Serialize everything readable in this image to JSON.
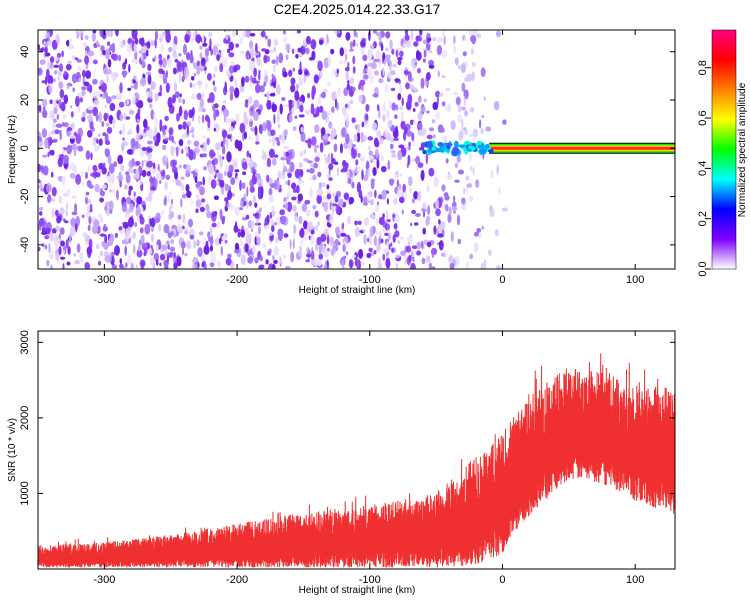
{
  "title": "C2E4.2025.014.22.33.G17",
  "chart_data": [
    {
      "type": "heatmap",
      "xlabel": "Height of straight line (km)",
      "ylabel": "Frequency (Hz)",
      "xlim": [
        -350,
        130
      ],
      "ylim": [
        -50,
        49
      ],
      "xticks": [
        -300,
        -200,
        -100,
        0,
        100
      ],
      "xtick_labels": [
        "-300",
        "-200",
        "-100",
        "0",
        "100"
      ],
      "yticks": [
        -40,
        -20,
        0,
        20,
        40
      ],
      "ytick_labels": [
        "-40",
        "-20",
        "0",
        "20",
        "40"
      ],
      "colorbar": {
        "label": "Normalized spectral amplitude",
        "range": [
          0,
          0.95
        ],
        "ticks": [
          0,
          0.2,
          0.4,
          0.6,
          0.8
        ],
        "tick_labels": [
          "0.0",
          "0.2",
          "0.4",
          "0.6",
          "0.8"
        ],
        "colors": [
          "#ffffff",
          "#7f00ff",
          "#0000ff",
          "#00ffff",
          "#00ff00",
          "#ffff00",
          "#ff8000",
          "#ff0000",
          "#ff0080"
        ]
      },
      "noise_region_x": [
        -350,
        -10
      ],
      "noise_amplitude": 0.05,
      "signal_line": {
        "x": [
          -60,
          130
        ],
        "frequency": 0,
        "amplitude": 0.85
      }
    },
    {
      "type": "line",
      "xlabel": "Height of straight line (km)",
      "ylabel": "SNR (10 * v/v)",
      "xlim": [
        -350,
        130
      ],
      "ylim": [
        0,
        3150
      ],
      "xticks": [
        -300,
        -200,
        -100,
        0,
        100
      ],
      "xtick_labels": [
        "-300",
        "-200",
        "-100",
        "0",
        "100"
      ],
      "yticks": [
        1000,
        2000,
        3000
      ],
      "ytick_labels": [
        "1000",
        "2000",
        "3000"
      ],
      "series_color": "#f03030",
      "envelope": {
        "x": [
          -350,
          -300,
          -250,
          -200,
          -150,
          -100,
          -50,
          -20,
          0,
          20,
          50,
          80,
          100,
          130
        ],
        "upper": [
          320,
          360,
          450,
          600,
          750,
          850,
          1000,
          1500,
          1800,
          2300,
          2700,
          2600,
          2450,
          2400
        ],
        "lower": [
          20,
          20,
          20,
          20,
          20,
          20,
          20,
          50,
          200,
          700,
          1200,
          1100,
          900,
          700
        ]
      }
    }
  ]
}
